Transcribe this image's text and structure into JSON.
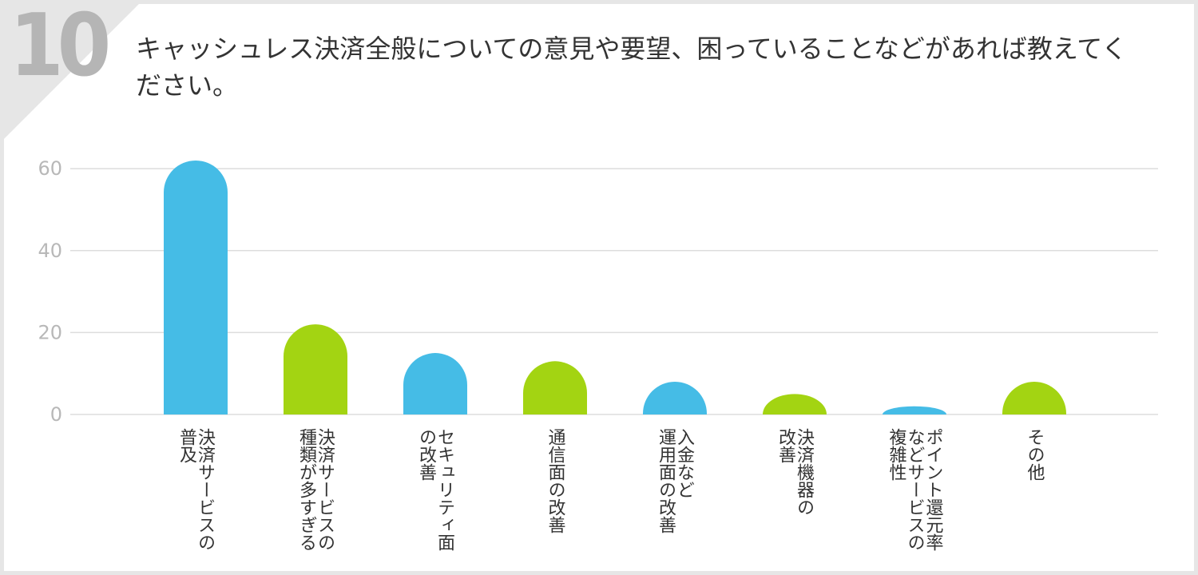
{
  "question": {
    "number": "10",
    "text": "キャッシュレス決済全般についての意見や要望、困っていることなどがあれば教えてください。"
  },
  "colors": {
    "blue": "#45bce6",
    "green": "#a3d412",
    "grid": "#dddddd",
    "background": "#ffffff",
    "frame": "#e6e6e6"
  },
  "chart_data": {
    "type": "bar",
    "title": "",
    "xlabel": "",
    "ylabel": "",
    "ylim": [
      0,
      60
    ],
    "yticks": [
      0,
      20,
      40,
      60
    ],
    "grid": true,
    "categories": [
      [
        "決済サービスの",
        "普及"
      ],
      [
        "決済サービスの",
        "種類が多すぎる"
      ],
      [
        "セキュリティ面",
        "の改善"
      ],
      [
        "通信面の改善"
      ],
      [
        "入金など",
        "運用面の改善"
      ],
      [
        "決済機器の",
        "改善"
      ],
      [
        "ポイント還元率",
        "などサービスの",
        "複雑性"
      ],
      [
        "その他"
      ]
    ],
    "values": [
      62,
      22,
      15,
      13,
      8,
      5,
      2,
      8
    ],
    "bar_colors": [
      "blue",
      "green",
      "blue",
      "green",
      "blue",
      "green",
      "blue",
      "green"
    ]
  }
}
